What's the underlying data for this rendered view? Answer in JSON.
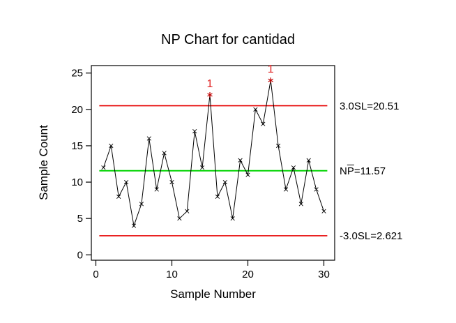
{
  "title": "NP Chart for cantidad",
  "labels": {
    "ucl": "3.0SL=20.51",
    "center_prefix": "N",
    "center_barred": "P",
    "center_suffix": "=11.57",
    "lcl": "-3.0SL=2.621"
  },
  "colors": {
    "limit_line": "#e60000",
    "center_line": "#00d400",
    "series_line": "#000000",
    "marker": "#000000",
    "ooc_marker": "#c00000",
    "flag_text": "#e02020",
    "axis": "#000000",
    "background": "#ffffff"
  },
  "chart_data": {
    "type": "line",
    "title": "NP Chart for cantidad",
    "xlabel": "Sample Number",
    "ylabel": "Sample Count",
    "x": [
      1,
      2,
      3,
      4,
      5,
      6,
      7,
      8,
      9,
      10,
      11,
      12,
      13,
      14,
      15,
      16,
      17,
      18,
      19,
      20,
      21,
      22,
      23,
      24,
      25,
      26,
      27,
      28,
      29,
      30
    ],
    "values": [
      12,
      15,
      8,
      10,
      4,
      7,
      16,
      9,
      14,
      10,
      5,
      6,
      17,
      12,
      22,
      8,
      10,
      5,
      13,
      11,
      20,
      18,
      24,
      15,
      9,
      12,
      7,
      13,
      9,
      6
    ],
    "center_line": 11.57,
    "ucl": 20.51,
    "lcl": 2.621,
    "out_of_control": [
      {
        "sample": 15,
        "value": 22,
        "flag": "1"
      },
      {
        "sample": 23,
        "value": 24,
        "flag": "1"
      }
    ],
    "x_ticks": [
      0,
      10,
      20,
      30
    ],
    "y_ticks": [
      0,
      5,
      10,
      15,
      20,
      25
    ],
    "xlim": [
      -0.6,
      31.4
    ],
    "ylim": [
      -0.8,
      26.0
    ],
    "grid": false,
    "legend": "none",
    "marker_style": "x-cross",
    "ooc_marker_style": "asterisk"
  }
}
